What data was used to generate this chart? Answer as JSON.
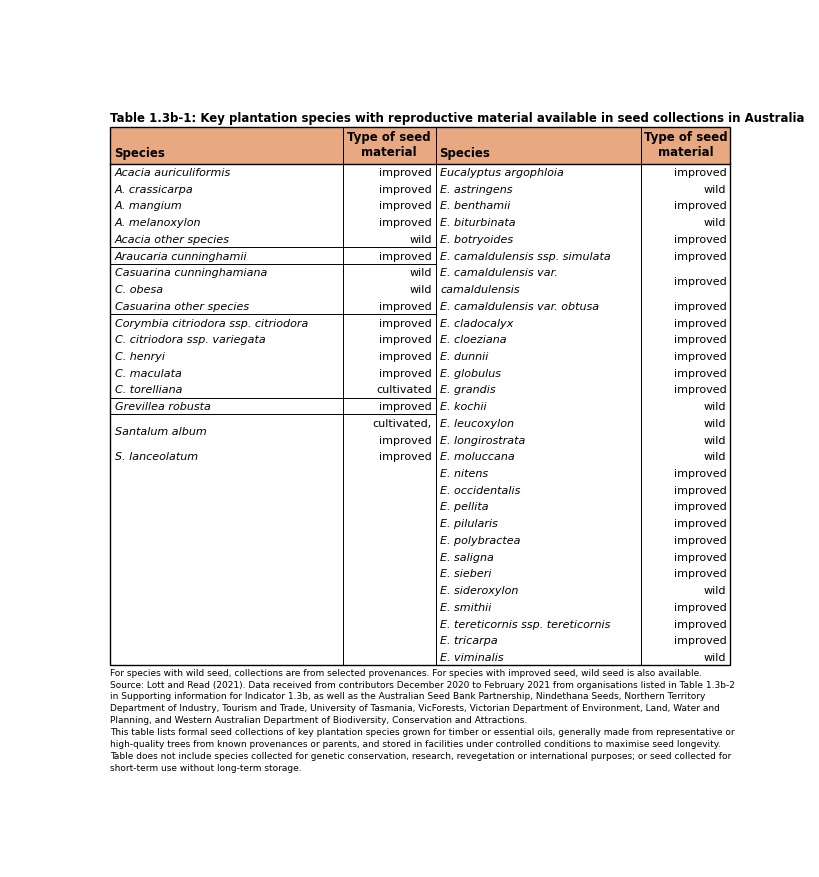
{
  "title": "Table 1.3b-1: Key plantation species with reproductive material available in seed collections in Australia",
  "header_bg": "#E8A882",
  "col1_header": "Species",
  "col2_header": "Type of seed\nmaterial",
  "col3_header": "Species",
  "col4_header": "Type of seed\nmaterial",
  "left_rows": [
    {
      "species": "Acacia auriculiformis",
      "italic": true,
      "material": "improved",
      "group_start": false
    },
    {
      "species": "A. crassicarpa",
      "italic": true,
      "material": "improved",
      "group_start": false
    },
    {
      "species": "A. mangium",
      "italic": true,
      "material": "improved",
      "group_start": false
    },
    {
      "species": "A. melanoxylon",
      "italic": true,
      "material": "improved",
      "group_start": false
    },
    {
      "species": "Acacia other species",
      "italic": true,
      "material": "wild",
      "group_start": false
    },
    {
      "species": "Araucaria cunninghamii",
      "italic": true,
      "material": "improved",
      "group_start": true
    },
    {
      "species": "Casuarina cunninghamiana",
      "italic": true,
      "material": "wild",
      "group_start": true
    },
    {
      "species": "C. obesa",
      "italic": true,
      "material": "wild",
      "group_start": false
    },
    {
      "species": "Casuarina other species",
      "italic": true,
      "material": "improved",
      "group_start": false
    },
    {
      "species": "Corymbia citriodora ssp. citriodora",
      "italic": true,
      "material": "improved",
      "group_start": true
    },
    {
      "species": "C. citriodora ssp. variegata",
      "italic": true,
      "material": "improved",
      "group_start": false
    },
    {
      "species": "C. henryi",
      "italic": true,
      "material": "improved",
      "group_start": false
    },
    {
      "species": "C. maculata",
      "italic": true,
      "material": "improved",
      "group_start": false
    },
    {
      "species": "C. torelliana",
      "italic": true,
      "material": "cultivated",
      "group_start": false
    },
    {
      "species": "Grevillea robusta",
      "italic": true,
      "material": "improved",
      "group_start": true
    },
    {
      "species": "Santalum album",
      "italic": true,
      "material": "cultivated,\nimproved",
      "group_start": true,
      "double_height": true
    },
    {
      "species": "S. lanceolatum",
      "italic": true,
      "material": "improved",
      "group_start": false
    }
  ],
  "right_rows": [
    {
      "species": "Eucalyptus argophloia",
      "italic": true,
      "material": "improved",
      "group_start": false
    },
    {
      "species": "E. astringens",
      "italic": true,
      "material": "wild",
      "group_start": false
    },
    {
      "species": "E. benthamii",
      "italic": true,
      "material": "improved",
      "group_start": false
    },
    {
      "species": "E. biturbinata",
      "italic": true,
      "material": "wild",
      "group_start": false
    },
    {
      "species": "E. botryoides",
      "italic": true,
      "material": "improved",
      "group_start": false
    },
    {
      "species": "E. camaldulensis ssp. simulata",
      "italic": true,
      "material": "improved",
      "group_start": false
    },
    {
      "species": "E. camaldulensis var.\ncamaldulensis",
      "italic": true,
      "material": "improved",
      "group_start": false,
      "double_height": true
    },
    {
      "species": "E. camaldulensis var. obtusa",
      "italic": true,
      "material": "improved",
      "group_start": false
    },
    {
      "species": "E. cladocalyx",
      "italic": true,
      "material": "improved",
      "group_start": false
    },
    {
      "species": "E. cloeziana",
      "italic": true,
      "material": "improved",
      "group_start": false
    },
    {
      "species": "E. dunnii",
      "italic": true,
      "material": "improved",
      "group_start": false
    },
    {
      "species": "E. globulus",
      "italic": true,
      "material": "improved",
      "group_start": false
    },
    {
      "species": "E. grandis",
      "italic": true,
      "material": "improved",
      "group_start": false
    },
    {
      "species": "E. kochii",
      "italic": true,
      "material": "wild",
      "group_start": false
    },
    {
      "species": "E. leucoxylon",
      "italic": true,
      "material": "wild",
      "group_start": false
    },
    {
      "species": "E. longirostrata",
      "italic": true,
      "material": "wild",
      "group_start": false
    },
    {
      "species": "E. moluccana",
      "italic": true,
      "material": "wild",
      "group_start": false
    },
    {
      "species": "E. nitens",
      "italic": true,
      "material": "improved",
      "group_start": false
    },
    {
      "species": "E. occidentalis",
      "italic": true,
      "material": "improved",
      "group_start": false
    },
    {
      "species": "E. pellita",
      "italic": true,
      "material": "improved",
      "group_start": false
    },
    {
      "species": "E. pilularis",
      "italic": true,
      "material": "improved",
      "group_start": false
    },
    {
      "species": "E. polybractea",
      "italic": true,
      "material": "improved",
      "group_start": false
    },
    {
      "species": "E. saligna",
      "italic": true,
      "material": "improved",
      "group_start": false
    },
    {
      "species": "E. sieberi",
      "italic": true,
      "material": "improved",
      "group_start": false
    },
    {
      "species": "E. sideroxylon",
      "italic": true,
      "material": "wild",
      "group_start": false
    },
    {
      "species": "E. smithii",
      "italic": true,
      "material": "improved",
      "group_start": false
    },
    {
      "species": "E. tereticornis ssp. tereticornis",
      "italic": true,
      "material": "improved",
      "group_start": false
    },
    {
      "species": "E. tricarpa",
      "italic": true,
      "material": "improved",
      "group_start": false
    },
    {
      "species": "E. viminalis",
      "italic": true,
      "material": "wild",
      "group_start": false
    }
  ],
  "footnotes": [
    "For species with wild seed, collections are from selected provenances. For species with improved seed, wild seed is also available.",
    "Source: Lott and Read (2021). Data received from contributors December 2020 to February 2021 from organisations listed in Table 1.3b-2",
    "in Supporting information for Indicator 1.3b, as well as the Australian Seed Bank Partnership, Nindethana Seeds, Northern Territory",
    "Department of Industry, Tourism and Trade, University of Tasmania, VicForests, Victorian Department of Environment, Land, Water and",
    "Planning, and Western Australian Department of Biodiversity, Conservation and Attractions.",
    "This table lists formal seed collections of key plantation species grown for timber or essential oils, generally made from representative or",
    "high-quality trees from known provenances or parents, and stored in facilities under controlled conditions to maximise seed longevity.",
    "Table does not include species collected for genetic conservation, research, revegetation or international purposes; or seed collected for",
    "short-term use without long-term storage."
  ],
  "footnote_fontsize": 6.5,
  "body_fontsize": 8.0,
  "header_fontsize": 8.5,
  "title_fontsize": 8.5
}
